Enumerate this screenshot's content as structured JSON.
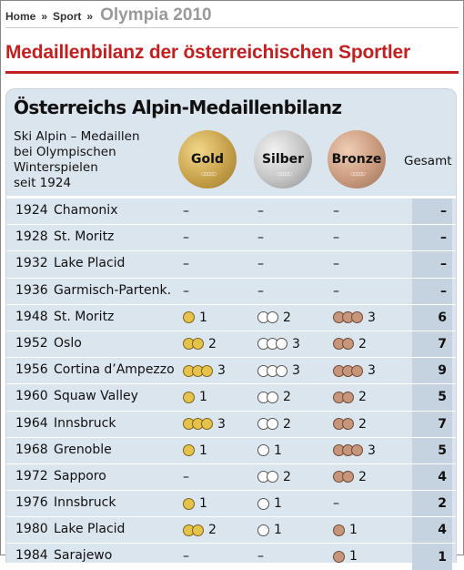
{
  "breadcrumb": {
    "home": "Home",
    "sep1": "»",
    "sport": "Sport",
    "sep2": "»",
    "current": "Olympia 2010"
  },
  "headline": "Medaillenbilanz der österreichischen Sportler",
  "card": {
    "title": "Österreichs Alpin-Medaillenbilanz",
    "subtitle_lines": [
      "Ski Alpin – Medaillen",
      "bei Olympischen",
      "Winterspielen",
      "seit 1924"
    ],
    "col_gold": "Gold",
    "col_silver": "Silber",
    "col_bronze": "Bronze",
    "col_total": "Gesamt"
  },
  "colors": {
    "gold": "#e7c24b",
    "silver": "#ffffff",
    "bronze": "#c6957a",
    "headline": "#c02020",
    "card_bg": "#dbe5ee"
  },
  "rows": [
    {
      "year": "1924",
      "place": "Chamonix",
      "gold": null,
      "silver": null,
      "bronze": null,
      "total": "–"
    },
    {
      "year": "1928",
      "place": "St. Moritz",
      "gold": null,
      "silver": null,
      "bronze": null,
      "total": "–"
    },
    {
      "year": "1932",
      "place": "Lake Placid",
      "gold": null,
      "silver": null,
      "bronze": null,
      "total": "–"
    },
    {
      "year": "1936",
      "place": "Garmisch-Partenk.",
      "gold": null,
      "silver": null,
      "bronze": null,
      "total": "–"
    },
    {
      "year": "1948",
      "place": "St. Moritz",
      "gold": 1,
      "silver": 2,
      "bronze": 3,
      "total": "6"
    },
    {
      "year": "1952",
      "place": "Oslo",
      "gold": 2,
      "silver": 3,
      "bronze": 2,
      "total": "7"
    },
    {
      "year": "1956",
      "place": "Cortina d’Ampezzo",
      "gold": 3,
      "silver": 3,
      "bronze": 3,
      "total": "9"
    },
    {
      "year": "1960",
      "place": "Squaw Valley",
      "gold": 1,
      "silver": 2,
      "bronze": 2,
      "total": "5"
    },
    {
      "year": "1964",
      "place": "Innsbruck",
      "gold": 3,
      "silver": 2,
      "bronze": 2,
      "total": "7"
    },
    {
      "year": "1968",
      "place": "Grenoble",
      "gold": 1,
      "silver": 1,
      "bronze": 3,
      "total": "5"
    },
    {
      "year": "1972",
      "place": "Sapporo",
      "gold": null,
      "silver": 2,
      "bronze": 2,
      "total": "4"
    },
    {
      "year": "1976",
      "place": "Innsbruck",
      "gold": 1,
      "silver": 1,
      "bronze": null,
      "total": "2"
    },
    {
      "year": "1980",
      "place": "Lake Placid",
      "gold": 2,
      "silver": 1,
      "bronze": 1,
      "total": "4"
    },
    {
      "year": "1984",
      "place": "Sarajewo",
      "gold": null,
      "silver": null,
      "bronze": 1,
      "total": "1"
    }
  ],
  "dash": "–"
}
